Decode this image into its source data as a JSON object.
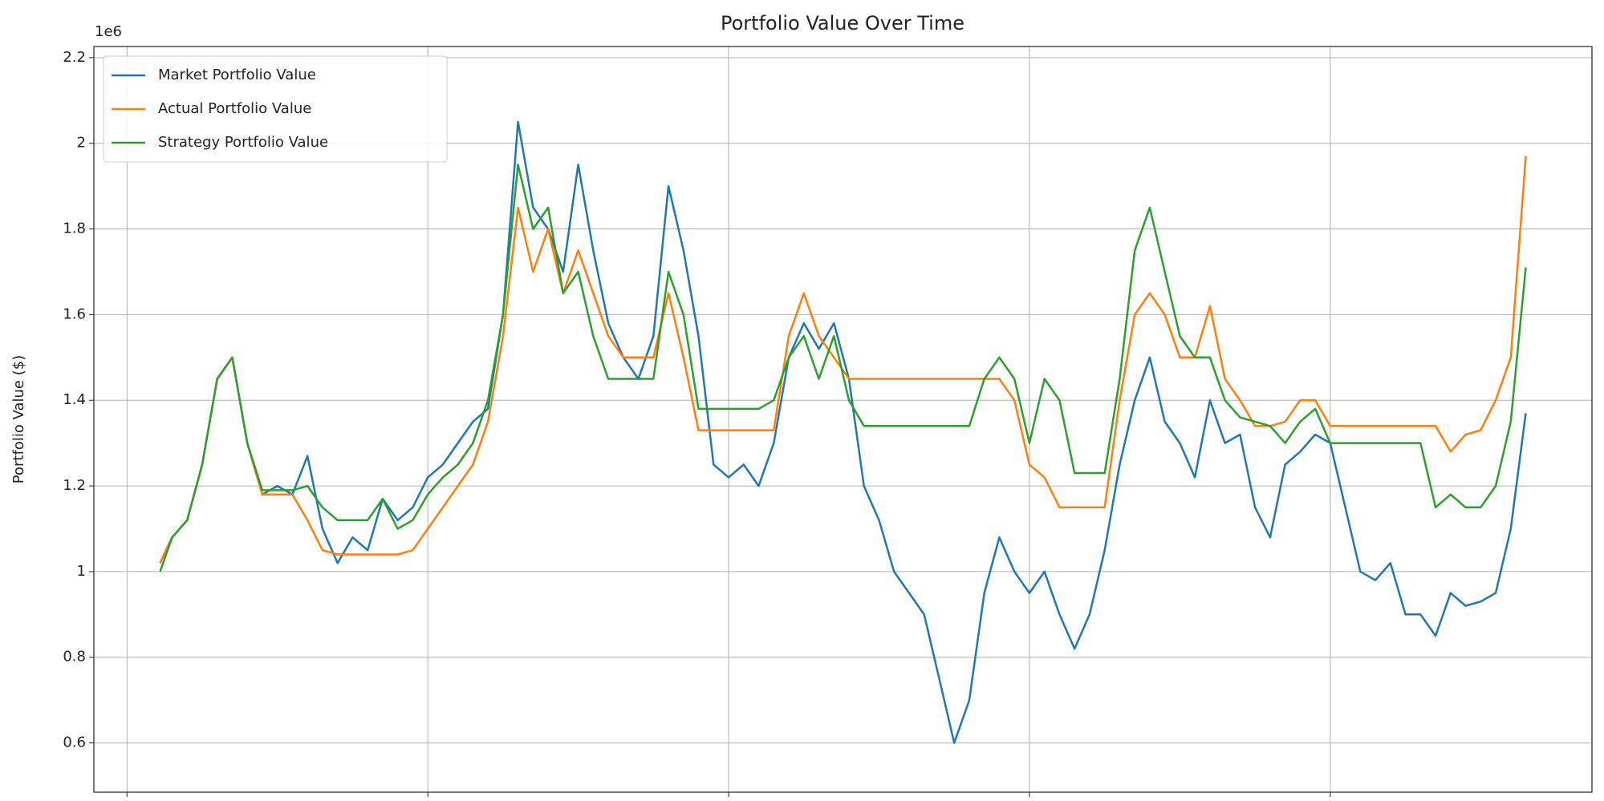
{
  "chart_data": {
    "type": "line",
    "title": "Portfolio Value Over Time",
    "ylabel": "Portfolio Value ($)",
    "y_offset_label": "1e6",
    "x": [
      22,
      30,
      40,
      50,
      60,
      70,
      80,
      90,
      100,
      110,
      120,
      130,
      140,
      150,
      160,
      170,
      180,
      190,
      200,
      210,
      220,
      230,
      240,
      250,
      260,
      270,
      280,
      290,
      300,
      310,
      320,
      330,
      340,
      350,
      360,
      370,
      380,
      390,
      400,
      410,
      420,
      430,
      440,
      450,
      460,
      470,
      480,
      490,
      500,
      510,
      520,
      530,
      540,
      550,
      560,
      570,
      580,
      590,
      600,
      610,
      620,
      630,
      640,
      650,
      660,
      670,
      680,
      690,
      700,
      710,
      720,
      730,
      740,
      750,
      760,
      770,
      780,
      790,
      800,
      810,
      820,
      830,
      840,
      850,
      860,
      870,
      880,
      890,
      900,
      910,
      920,
      930
    ],
    "series": [
      {
        "name": "Market Portfolio Value",
        "color": "#1f77b4",
        "values": [
          1.02,
          1.08,
          1.12,
          1.25,
          1.45,
          1.5,
          1.3,
          1.18,
          1.2,
          1.18,
          1.27,
          1.1,
          1.02,
          1.08,
          1.05,
          1.17,
          1.12,
          1.15,
          1.22,
          1.25,
          1.3,
          1.35,
          1.38,
          1.6,
          2.05,
          1.85,
          1.8,
          1.7,
          1.95,
          1.75,
          1.58,
          1.5,
          1.45,
          1.55,
          1.9,
          1.75,
          1.55,
          1.25,
          1.22,
          1.25,
          1.2,
          1.3,
          1.5,
          1.58,
          1.52,
          1.58,
          1.45,
          1.2,
          1.12,
          1.0,
          0.95,
          0.9,
          0.75,
          0.6,
          0.7,
          0.95,
          1.08,
          1.0,
          0.95,
          1.0,
          0.9,
          0.82,
          0.9,
          1.05,
          1.25,
          1.4,
          1.5,
          1.35,
          1.3,
          1.22,
          1.4,
          1.3,
          1.32,
          1.15,
          1.08,
          1.25,
          1.28,
          1.32,
          1.3,
          1.15,
          1.0,
          0.98,
          1.02,
          0.9,
          0.9,
          0.85,
          0.95,
          0.92,
          0.93,
          0.95,
          1.1,
          1.37
        ]
      },
      {
        "name": "Actual Portfolio Value",
        "color": "#ff7f0e",
        "values": [
          1.02,
          1.08,
          1.12,
          1.25,
          1.45,
          1.5,
          1.3,
          1.18,
          1.18,
          1.18,
          1.12,
          1.05,
          1.04,
          1.04,
          1.04,
          1.04,
          1.04,
          1.05,
          1.1,
          1.15,
          1.2,
          1.25,
          1.35,
          1.55,
          1.85,
          1.7,
          1.8,
          1.65,
          1.75,
          1.65,
          1.55,
          1.5,
          1.5,
          1.5,
          1.65,
          1.5,
          1.33,
          1.33,
          1.33,
          1.33,
          1.33,
          1.33,
          1.55,
          1.65,
          1.55,
          1.5,
          1.45,
          1.45,
          1.45,
          1.45,
          1.45,
          1.45,
          1.45,
          1.45,
          1.45,
          1.45,
          1.45,
          1.4,
          1.25,
          1.22,
          1.15,
          1.15,
          1.15,
          1.15,
          1.4,
          1.6,
          1.65,
          1.6,
          1.5,
          1.5,
          1.62,
          1.45,
          1.4,
          1.34,
          1.34,
          1.35,
          1.4,
          1.4,
          1.34,
          1.34,
          1.34,
          1.34,
          1.34,
          1.34,
          1.34,
          1.34,
          1.28,
          1.32,
          1.33,
          1.4,
          1.5,
          1.97
        ]
      },
      {
        "name": "Strategy Portfolio Value",
        "color": "#2ca02c",
        "values": [
          1.0,
          1.08,
          1.12,
          1.25,
          1.45,
          1.5,
          1.3,
          1.19,
          1.19,
          1.19,
          1.2,
          1.15,
          1.12,
          1.12,
          1.12,
          1.17,
          1.1,
          1.12,
          1.18,
          1.22,
          1.25,
          1.3,
          1.4,
          1.6,
          1.95,
          1.8,
          1.85,
          1.65,
          1.7,
          1.55,
          1.45,
          1.45,
          1.45,
          1.45,
          1.7,
          1.6,
          1.38,
          1.38,
          1.38,
          1.38,
          1.38,
          1.4,
          1.5,
          1.55,
          1.45,
          1.55,
          1.4,
          1.34,
          1.34,
          1.34,
          1.34,
          1.34,
          1.34,
          1.34,
          1.34,
          1.45,
          1.5,
          1.45,
          1.3,
          1.45,
          1.4,
          1.23,
          1.23,
          1.23,
          1.45,
          1.75,
          1.85,
          1.7,
          1.55,
          1.5,
          1.5,
          1.4,
          1.36,
          1.35,
          1.34,
          1.3,
          1.35,
          1.38,
          1.3,
          1.3,
          1.3,
          1.3,
          1.3,
          1.3,
          1.3,
          1.15,
          1.18,
          1.15,
          1.15,
          1.2,
          1.35,
          1.71
        ]
      }
    ],
    "xlim": [
      -22,
      974
    ],
    "xticks": [
      0,
      200,
      400,
      600,
      800
    ],
    "ylim": [
      0.485,
      2.226
    ],
    "yticks": [
      0.6,
      0.8,
      1.0,
      1.2,
      1.4,
      1.6,
      1.8,
      2.0,
      2.2
    ],
    "grid": true,
    "legend": "upper left"
  }
}
